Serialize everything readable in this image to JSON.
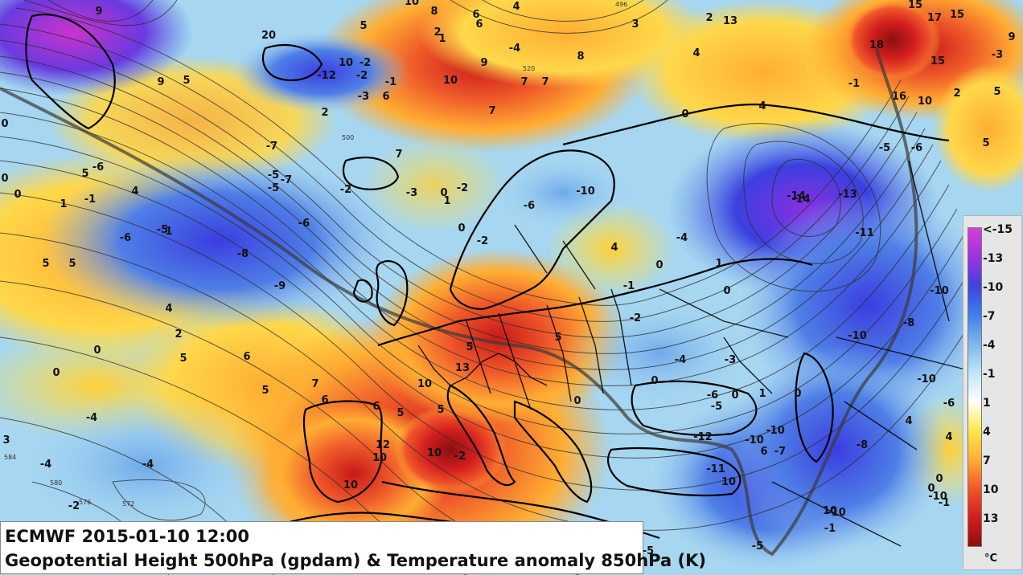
{
  "title": {
    "line1": "ECMWF 2015-01-10 12:00",
    "line2": "Geopotential Height 500hPa (gpdam) & Temperature anomaly 850hPa (K)"
  },
  "legend": {
    "ticks": [
      "<-15",
      "-13",
      "-10",
      "-7",
      "-4",
      "-1",
      "1",
      "4",
      "7",
      "10",
      "13"
    ],
    "unit": "°C",
    "colors": [
      "#d63fd6",
      "#9b33e0",
      "#3f43e0",
      "#3f7fe8",
      "#7fb6ee",
      "#bfe6f6",
      "#ffffff",
      "#ffe84a",
      "#ffae33",
      "#f0582a",
      "#d21e1e",
      "#8e0f0f"
    ]
  },
  "map_labels": [
    {
      "text": "9"
    },
    {
      "text": "10"
    },
    {
      "text": "8"
    },
    {
      "text": "6"
    },
    {
      "text": "4"
    },
    {
      "text": "3"
    },
    {
      "text": "2"
    },
    {
      "text": "13"
    },
    {
      "text": "15"
    },
    {
      "text": "17"
    },
    {
      "text": "15"
    },
    {
      "text": "9"
    },
    {
      "text": "20"
    },
    {
      "text": "5"
    },
    {
      "text": "2"
    },
    {
      "text": "1"
    },
    {
      "text": "6"
    },
    {
      "text": "-4"
    },
    {
      "text": "4"
    },
    {
      "text": "-3"
    },
    {
      "text": "9"
    },
    {
      "text": "5"
    },
    {
      "text": "-1"
    },
    {
      "text": "10"
    },
    {
      "text": "-2"
    },
    {
      "text": "-12"
    },
    {
      "text": "-2"
    },
    {
      "text": "10"
    },
    {
      "text": "9"
    },
    {
      "text": "7"
    },
    {
      "text": "7"
    },
    {
      "text": "8"
    },
    {
      "text": "18"
    },
    {
      "text": "15"
    },
    {
      "text": "5"
    },
    {
      "text": "0"
    },
    {
      "text": "-1"
    },
    {
      "text": "-3"
    },
    {
      "text": "2"
    },
    {
      "text": "6"
    },
    {
      "text": "7"
    },
    {
      "text": "0"
    },
    {
      "text": "4"
    },
    {
      "text": "-1"
    },
    {
      "text": "16"
    },
    {
      "text": "10"
    },
    {
      "text": "2"
    },
    {
      "text": "0"
    },
    {
      "text": "-6"
    },
    {
      "text": "-7"
    },
    {
      "text": "-5"
    },
    {
      "text": "-7"
    },
    {
      "text": "-5"
    },
    {
      "text": "-2"
    },
    {
      "text": "7"
    },
    {
      "text": "-14"
    },
    {
      "text": "-13"
    },
    {
      "text": "-5"
    },
    {
      "text": "-6"
    },
    {
      "text": "5"
    },
    {
      "text": "0"
    },
    {
      "text": "1"
    },
    {
      "text": "5"
    },
    {
      "text": "4"
    },
    {
      "text": "1"
    },
    {
      "text": "-3"
    },
    {
      "text": "0"
    },
    {
      "text": "-2"
    },
    {
      "text": "1"
    },
    {
      "text": "-10"
    },
    {
      "text": "-14"
    },
    {
      "text": "-11"
    },
    {
      "text": "-6"
    },
    {
      "text": "-5"
    },
    {
      "text": "-6"
    },
    {
      "text": "-8"
    },
    {
      "text": "-9"
    },
    {
      "text": "0"
    },
    {
      "text": "-2"
    },
    {
      "text": "-6"
    },
    {
      "text": "-4"
    },
    {
      "text": "4"
    },
    {
      "text": "0"
    },
    {
      "text": "1"
    },
    {
      "text": "0"
    },
    {
      "text": "5"
    },
    {
      "text": "5"
    },
    {
      "text": "4"
    },
    {
      "text": "2"
    },
    {
      "text": "0"
    },
    {
      "text": "-1"
    },
    {
      "text": "-2"
    },
    {
      "text": "-10"
    },
    {
      "text": "-8"
    },
    {
      "text": "-10"
    },
    {
      "text": "6"
    },
    {
      "text": "5"
    },
    {
      "text": "0"
    },
    {
      "text": "5"
    },
    {
      "text": "13"
    },
    {
      "text": "5"
    },
    {
      "text": "-4"
    },
    {
      "text": "-3"
    },
    {
      "text": "-10"
    },
    {
      "text": "5"
    },
    {
      "text": "7"
    },
    {
      "text": "10"
    },
    {
      "text": "6"
    },
    {
      "text": "6"
    },
    {
      "text": "5"
    },
    {
      "text": "5"
    },
    {
      "text": "0"
    },
    {
      "text": "0"
    },
    {
      "text": "-6"
    },
    {
      "text": "0"
    },
    {
      "text": "1"
    },
    {
      "text": "0"
    },
    {
      "text": "-5"
    },
    {
      "text": "-4"
    },
    {
      "text": "-4"
    },
    {
      "text": "-4"
    },
    {
      "text": "12"
    },
    {
      "text": "10"
    },
    {
      "text": "10"
    },
    {
      "text": "10"
    },
    {
      "text": "-2"
    },
    {
      "text": "-12"
    },
    {
      "text": "-10"
    },
    {
      "text": "-10"
    },
    {
      "text": "6"
    },
    {
      "text": "-7"
    },
    {
      "text": "-8"
    },
    {
      "text": "4"
    },
    {
      "text": "-6"
    },
    {
      "text": "4"
    },
    {
      "text": "3"
    },
    {
      "text": "-2"
    },
    {
      "text": "10"
    },
    {
      "text": "-11"
    },
    {
      "text": "10"
    },
    {
      "text": "-1"
    },
    {
      "text": "0"
    },
    {
      "text": "-10"
    },
    {
      "text": "-10"
    },
    {
      "text": "-5"
    },
    {
      "text": "-5"
    },
    {
      "text": "-1"
    },
    {
      "text": "0"
    }
  ],
  "contour_labels": [
    "584",
    "580",
    "576",
    "572",
    "520",
    "500",
    "496"
  ]
}
